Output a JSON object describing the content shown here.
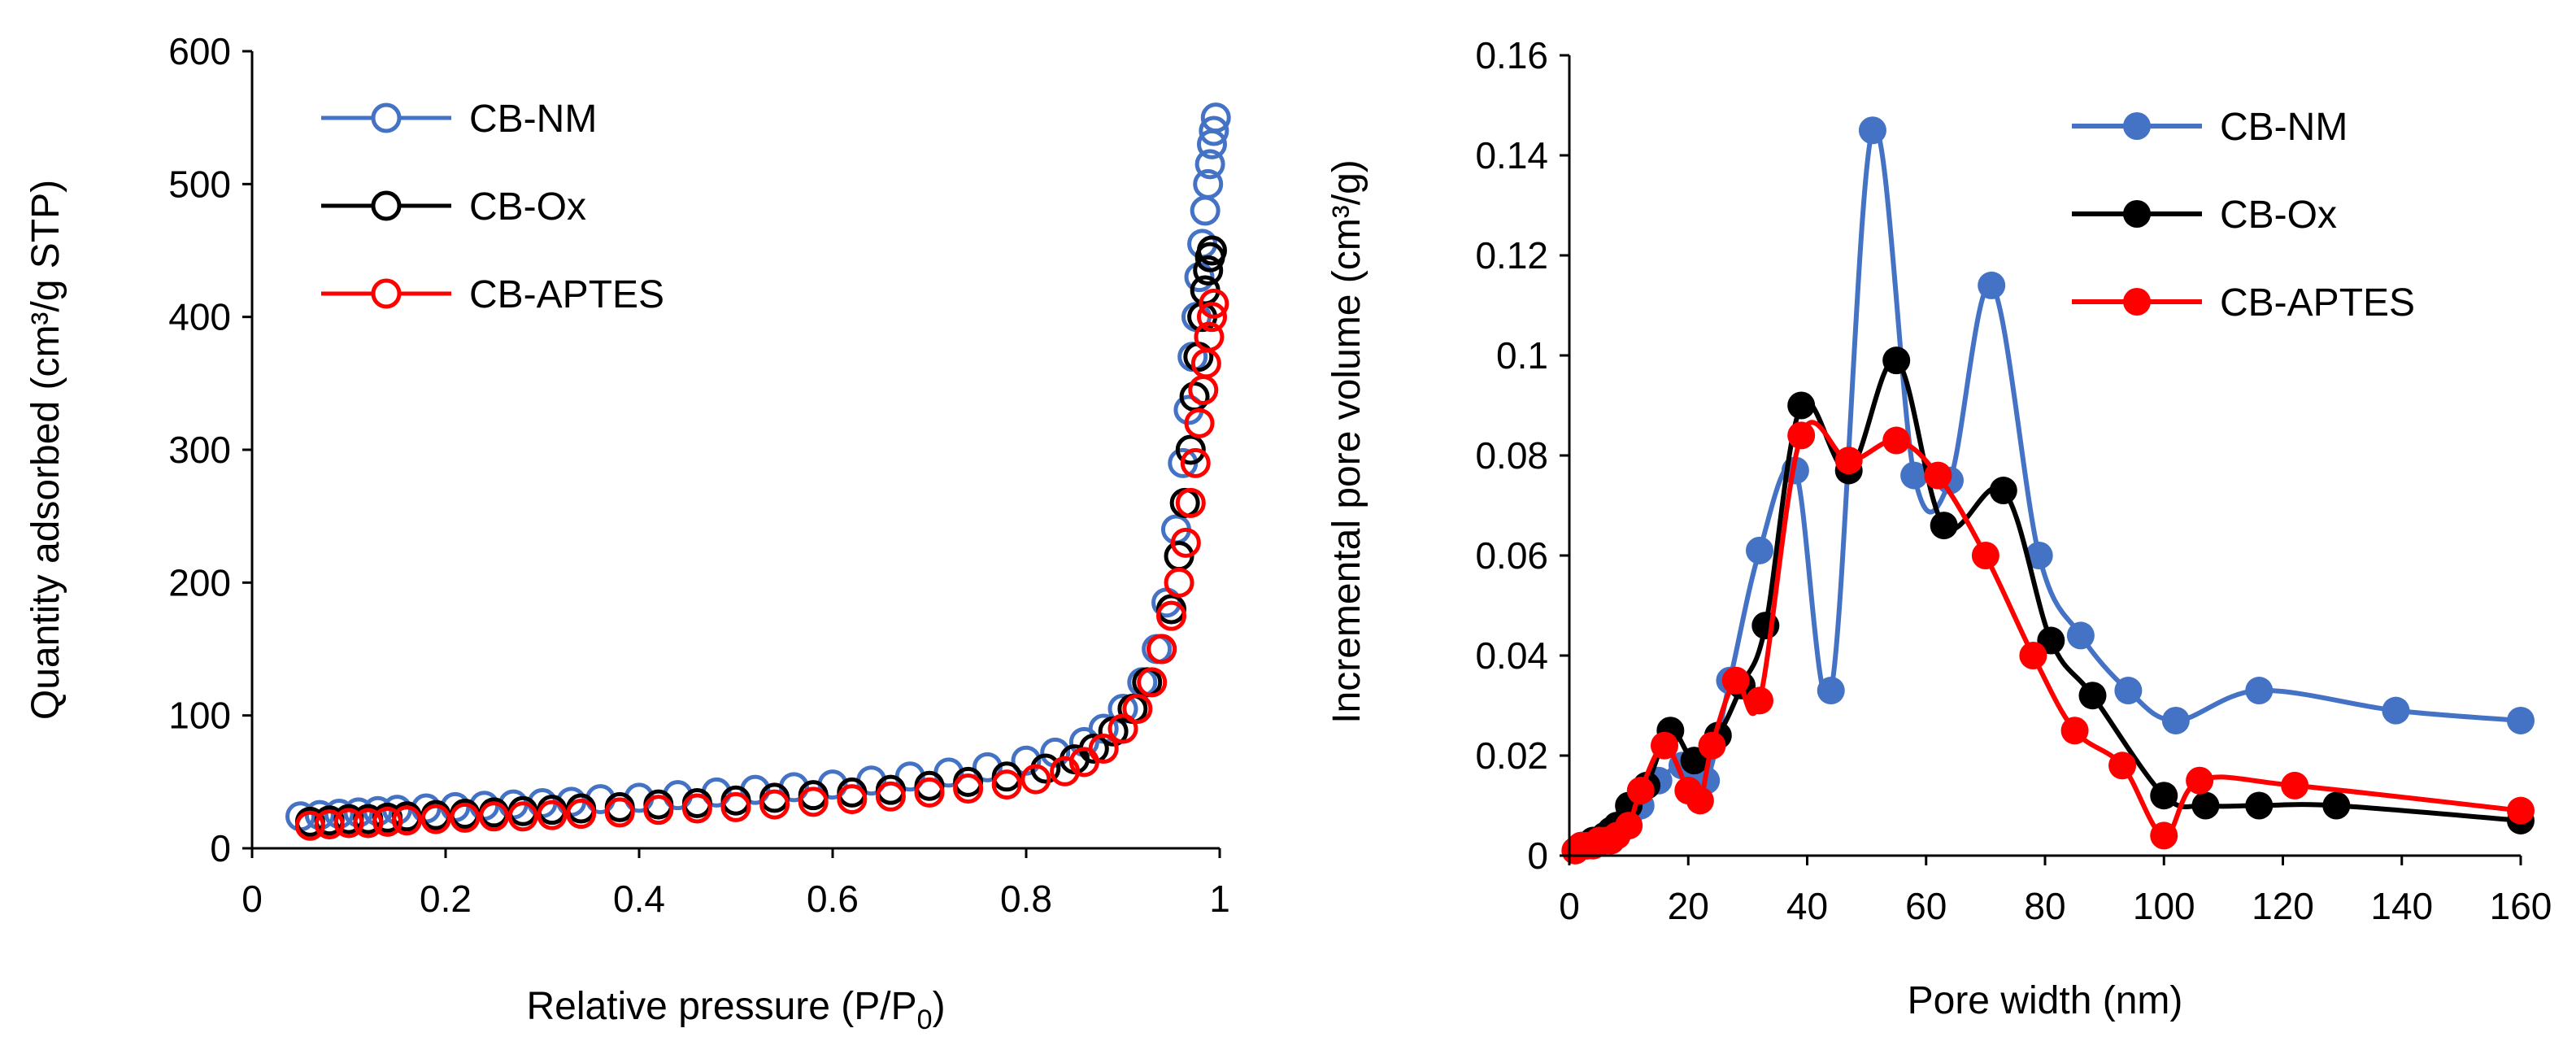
{
  "figure_title": "",
  "chart_data": [
    {
      "type": "scatter",
      "title": "",
      "xlabel": "Relative pressure (P/P",
      "xlabel_sub": "0",
      "xlabel_end": ")",
      "ylabel": "Quantity adsorbed (cm³/g STP)",
      "xlim": [
        0,
        1
      ],
      "ylim": [
        0,
        600
      ],
      "xticks": [
        0,
        0.2,
        0.4,
        0.6,
        0.8,
        1
      ],
      "xtick_labels": [
        "0",
        "0.2",
        "0.4",
        "0.6",
        "0.8",
        "1"
      ],
      "yticks": [
        0,
        100,
        200,
        300,
        400,
        500,
        600
      ],
      "ytick_labels": [
        "0",
        "100",
        "200",
        "300",
        "400",
        "500",
        "600"
      ],
      "grid": false,
      "legend_position": "top-left",
      "marker": "open-circle",
      "series": [
        {
          "name": "CB-NM",
          "color": "#4472C4",
          "x": [
            0.05,
            0.07,
            0.09,
            0.11,
            0.13,
            0.15,
            0.18,
            0.21,
            0.24,
            0.27,
            0.3,
            0.33,
            0.36,
            0.4,
            0.44,
            0.48,
            0.52,
            0.56,
            0.6,
            0.64,
            0.68,
            0.72,
            0.76,
            0.8,
            0.83,
            0.86,
            0.88,
            0.9,
            0.92,
            0.935,
            0.945,
            0.955,
            0.962,
            0.968,
            0.972,
            0.976,
            0.979,
            0.982,
            0.985,
            0.988,
            0.99,
            0.992,
            0.994,
            0.996
          ],
          "y": [
            24,
            25,
            26,
            27,
            28,
            29,
            30,
            31,
            32,
            33,
            34,
            35,
            37,
            38,
            40,
            42,
            44,
            46,
            48,
            51,
            54,
            57,
            61,
            66,
            72,
            80,
            90,
            105,
            125,
            150,
            185,
            240,
            290,
            330,
            370,
            400,
            430,
            455,
            480,
            500,
            515,
            530,
            540,
            550
          ]
        },
        {
          "name": "CB-Ox",
          "color": "#000000",
          "x": [
            0.06,
            0.08,
            0.1,
            0.12,
            0.14,
            0.16,
            0.19,
            0.22,
            0.25,
            0.28,
            0.31,
            0.34,
            0.38,
            0.42,
            0.46,
            0.5,
            0.54,
            0.58,
            0.62,
            0.66,
            0.7,
            0.74,
            0.78,
            0.82,
            0.85,
            0.87,
            0.89,
            0.91,
            0.925,
            0.94,
            0.95,
            0.958,
            0.964,
            0.97,
            0.974,
            0.978,
            0.982,
            0.985,
            0.988,
            0.99,
            0.992
          ],
          "y": [
            20,
            21,
            22,
            22,
            23,
            24,
            25,
            26,
            27,
            28,
            29,
            30,
            31,
            33,
            34,
            36,
            38,
            40,
            42,
            44,
            47,
            50,
            54,
            60,
            67,
            75,
            88,
            105,
            125,
            150,
            180,
            220,
            260,
            300,
            340,
            370,
            400,
            420,
            435,
            445,
            450
          ]
        },
        {
          "name": "CB-APTES",
          "color": "#FF0000",
          "x": [
            0.06,
            0.08,
            0.1,
            0.12,
            0.14,
            0.16,
            0.19,
            0.22,
            0.25,
            0.28,
            0.31,
            0.34,
            0.38,
            0.42,
            0.46,
            0.5,
            0.54,
            0.58,
            0.62,
            0.66,
            0.7,
            0.74,
            0.78,
            0.81,
            0.84,
            0.86,
            0.88,
            0.9,
            0.915,
            0.93,
            0.94,
            0.95,
            0.958,
            0.965,
            0.97,
            0.975,
            0.979,
            0.983,
            0.986,
            0.989,
            0.992,
            0.994
          ],
          "y": [
            17,
            18,
            19,
            19,
            20,
            21,
            22,
            23,
            24,
            24,
            25,
            26,
            27,
            29,
            30,
            31,
            33,
            35,
            37,
            39,
            42,
            45,
            48,
            52,
            58,
            65,
            75,
            90,
            105,
            125,
            150,
            175,
            200,
            230,
            260,
            290,
            320,
            345,
            365,
            385,
            400,
            410
          ]
        }
      ]
    },
    {
      "type": "line",
      "title": "",
      "xlabel": "Pore width (nm)",
      "ylabel": "Incremental pore volume (cm³/g)",
      "xlim": [
        0,
        160
      ],
      "ylim": [
        0,
        0.16
      ],
      "xticks": [
        0,
        20,
        40,
        60,
        80,
        100,
        120,
        140,
        160
      ],
      "xtick_labels": [
        "0",
        "20",
        "40",
        "60",
        "80",
        "100",
        "120",
        "140",
        "160"
      ],
      "yticks": [
        0,
        0.02,
        0.04,
        0.06,
        0.08,
        0.1,
        0.12,
        0.14,
        0.16
      ],
      "ytick_labels": [
        "0",
        "0.02",
        "0.04",
        "0.06",
        "0.08",
        "0.1",
        "0.12",
        "0.14",
        "0.16"
      ],
      "grid": false,
      "legend_position": "top-right",
      "marker": "filled-circle",
      "smooth": true,
      "series": [
        {
          "name": "CB-NM",
          "color": "#4472C4",
          "x": [
            2,
            4,
            6,
            8,
            10,
            12,
            15,
            19,
            23,
            27,
            32,
            38,
            44,
            51,
            58,
            64,
            71,
            79,
            86,
            94,
            102,
            116,
            139,
            160
          ],
          "y": [
            0.002,
            0.003,
            0.004,
            0.006,
            0.008,
            0.01,
            0.015,
            0.018,
            0.015,
            0.035,
            0.061,
            0.077,
            0.033,
            0.145,
            0.076,
            0.075,
            0.114,
            0.06,
            0.044,
            0.033,
            0.027,
            0.033,
            0.029,
            0.027
          ]
        },
        {
          "name": "CB-Ox",
          "color": "#000000",
          "x": [
            2,
            3,
            4,
            5,
            6,
            7,
            8,
            10,
            13,
            17,
            21,
            25,
            29,
            33,
            39,
            47,
            55,
            63,
            73,
            81,
            88,
            100,
            107,
            116,
            129,
            160
          ],
          "y": [
            0.002,
            0.002,
            0.003,
            0.003,
            0.004,
            0.005,
            0.006,
            0.01,
            0.014,
            0.025,
            0.019,
            0.024,
            0.034,
            0.046,
            0.09,
            0.077,
            0.099,
            0.066,
            0.073,
            0.043,
            0.032,
            0.012,
            0.01,
            0.01,
            0.01,
            0.007
          ]
        },
        {
          "name": "CB-APTES",
          "color": "#FF0000",
          "x": [
            1,
            2,
            3,
            4,
            5,
            6,
            7,
            8,
            10,
            12,
            16,
            20,
            22,
            24,
            28,
            32,
            39,
            47,
            55,
            62,
            70,
            78,
            85,
            93,
            100,
            106,
            122,
            160
          ],
          "y": [
            0.001,
            0.002,
            0.002,
            0.002,
            0.003,
            0.003,
            0.003,
            0.004,
            0.006,
            0.013,
            0.022,
            0.013,
            0.011,
            0.022,
            0.035,
            0.031,
            0.084,
            0.079,
            0.083,
            0.076,
            0.06,
            0.04,
            0.025,
            0.018,
            0.004,
            0.015,
            0.014,
            0.009
          ]
        }
      ]
    }
  ]
}
